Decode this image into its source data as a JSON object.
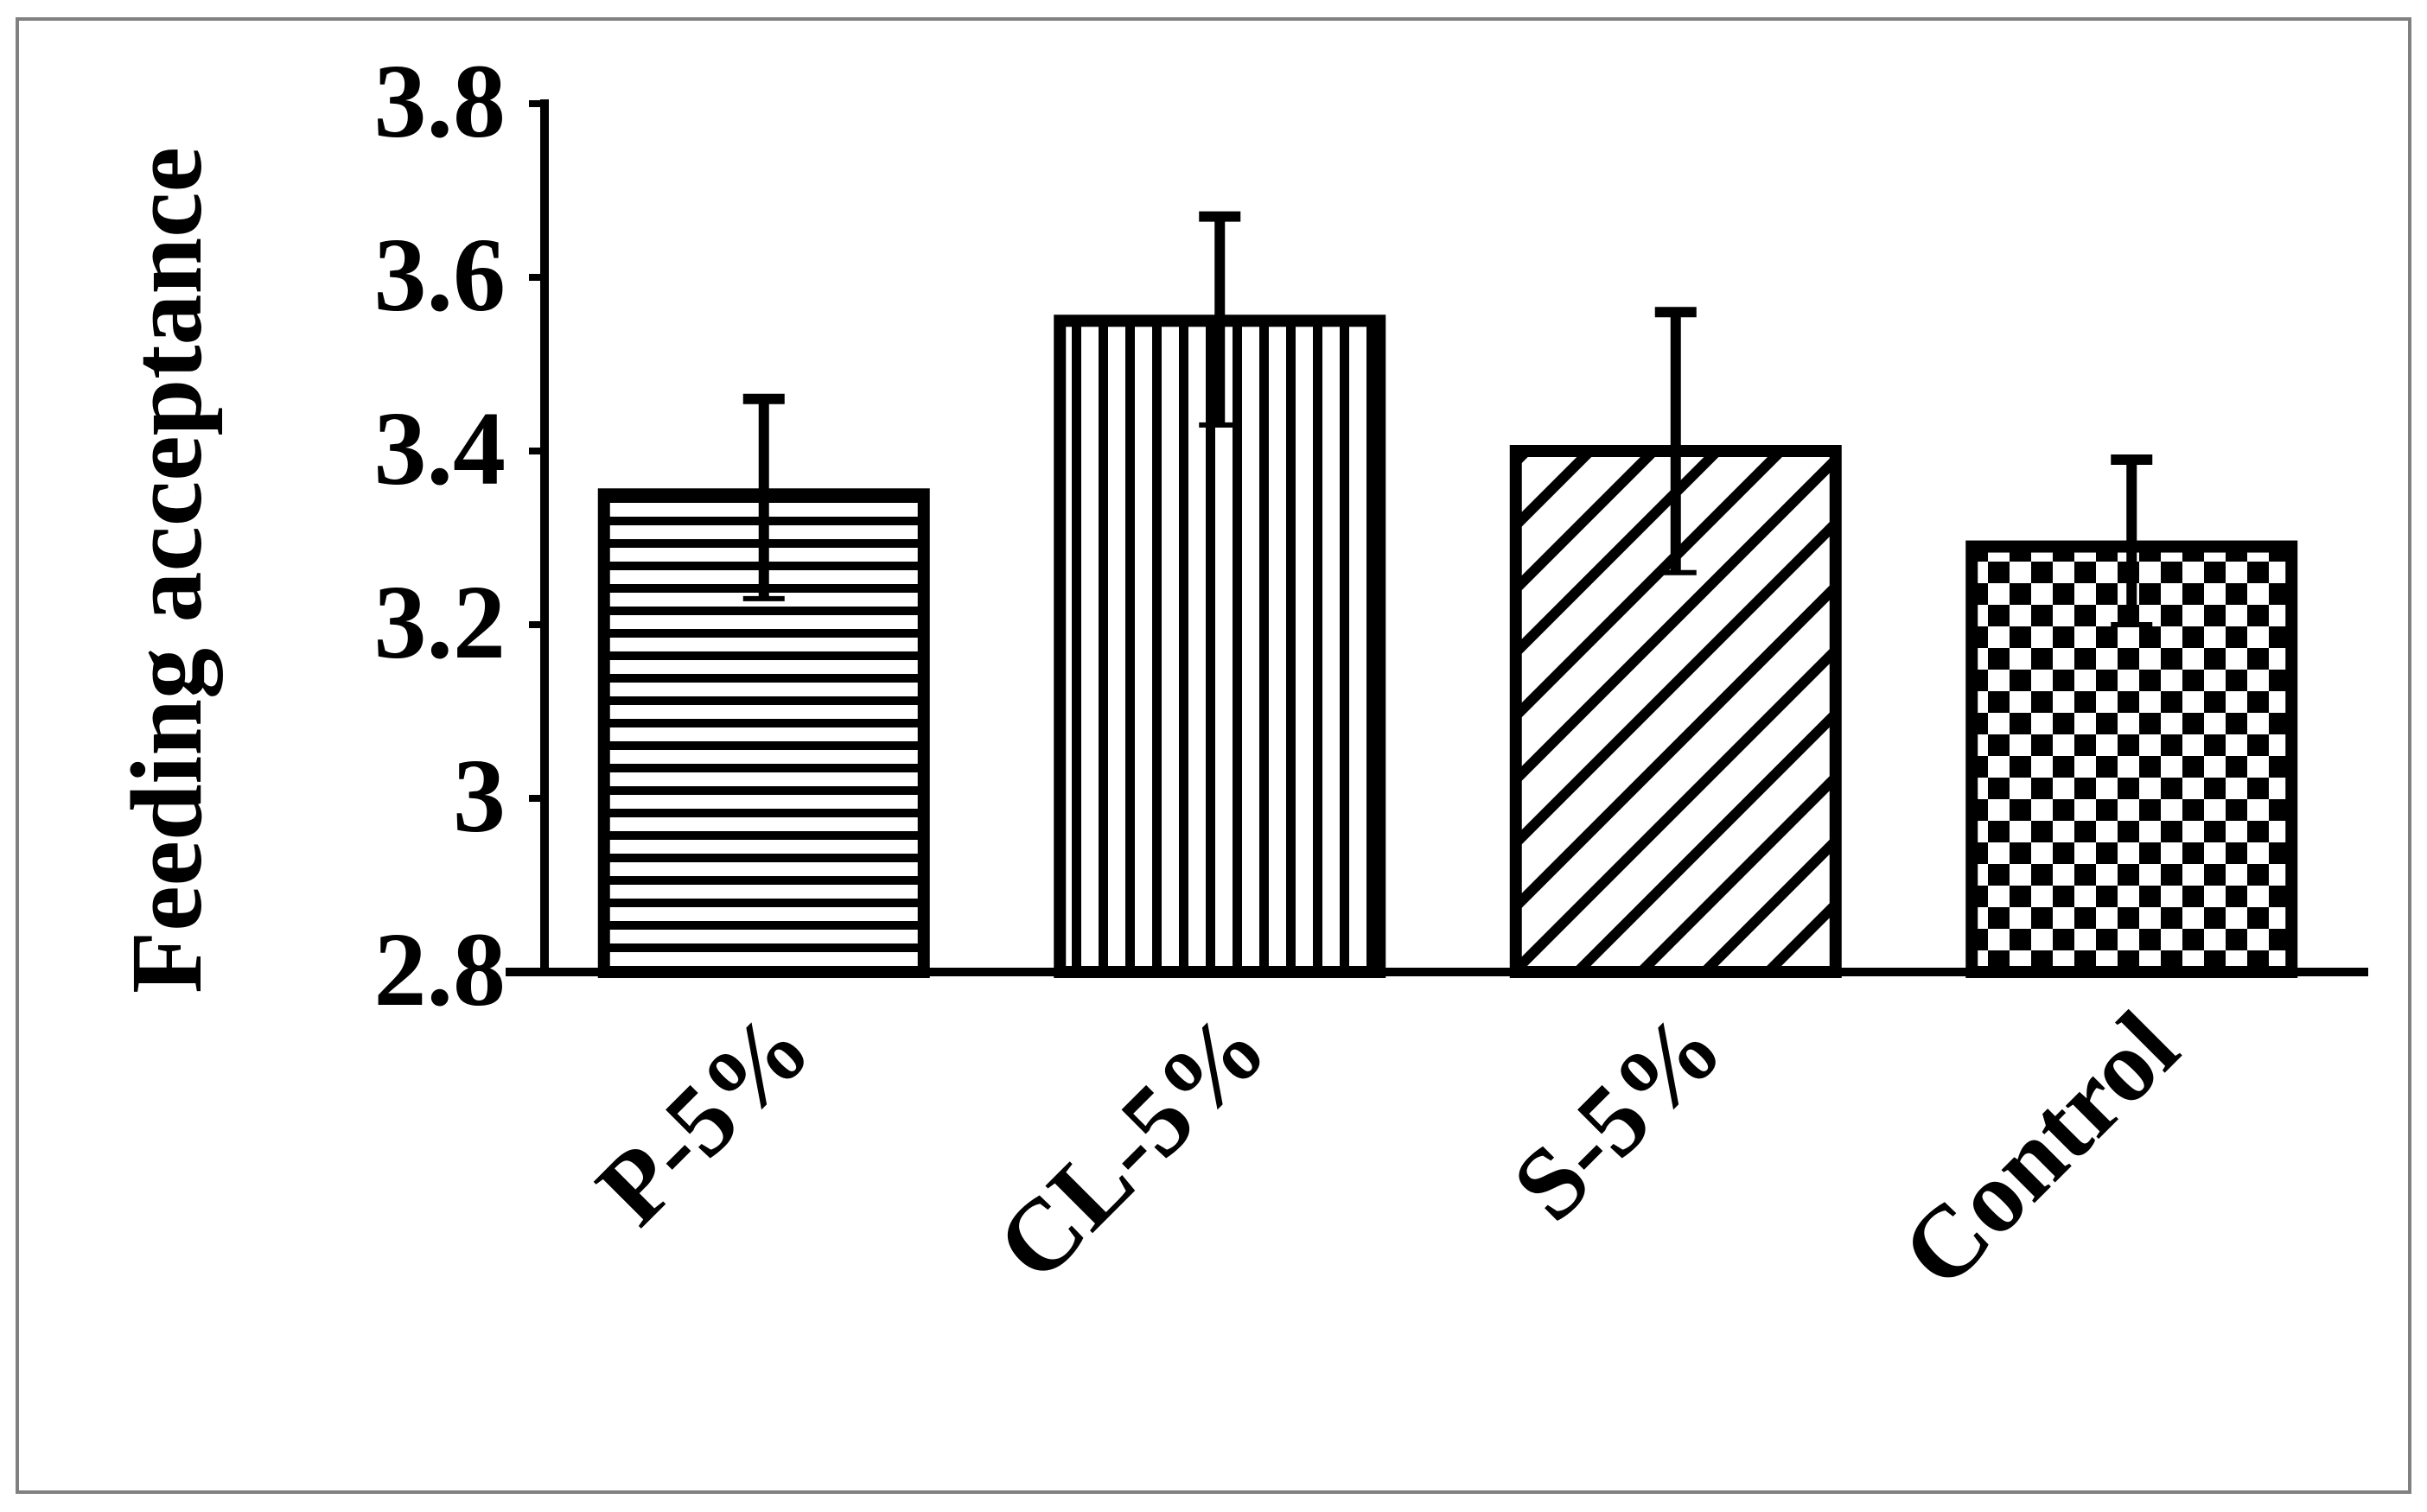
{
  "chart_data": {
    "type": "bar",
    "title": "",
    "xlabel": "",
    "ylabel": "Feeding acceptance",
    "categories": [
      "P-5%",
      "CL-5%",
      "S-5%",
      "Control"
    ],
    "values": [
      3.35,
      3.55,
      3.4,
      3.29
    ],
    "error_upper": [
      0.11,
      0.12,
      0.16,
      0.1
    ],
    "error_lower": [
      0.12,
      0.12,
      0.14,
      0.09
    ],
    "ylim": [
      2.8,
      3.8
    ],
    "yticks": [
      "2.8",
      "3",
      "3.2",
      "3.4",
      "3.6",
      "3.8"
    ],
    "ytick_values": [
      2.8,
      3.0,
      3.2,
      3.4,
      3.6,
      3.8
    ],
    "fill_patterns": [
      "horizontal-lines",
      "vertical-lines",
      "diagonal-lines",
      "checkerboard"
    ],
    "grid": false,
    "legend": "none",
    "colors": {
      "ink": "#000000",
      "background": "#ffffff",
      "frame": "#808080"
    }
  }
}
